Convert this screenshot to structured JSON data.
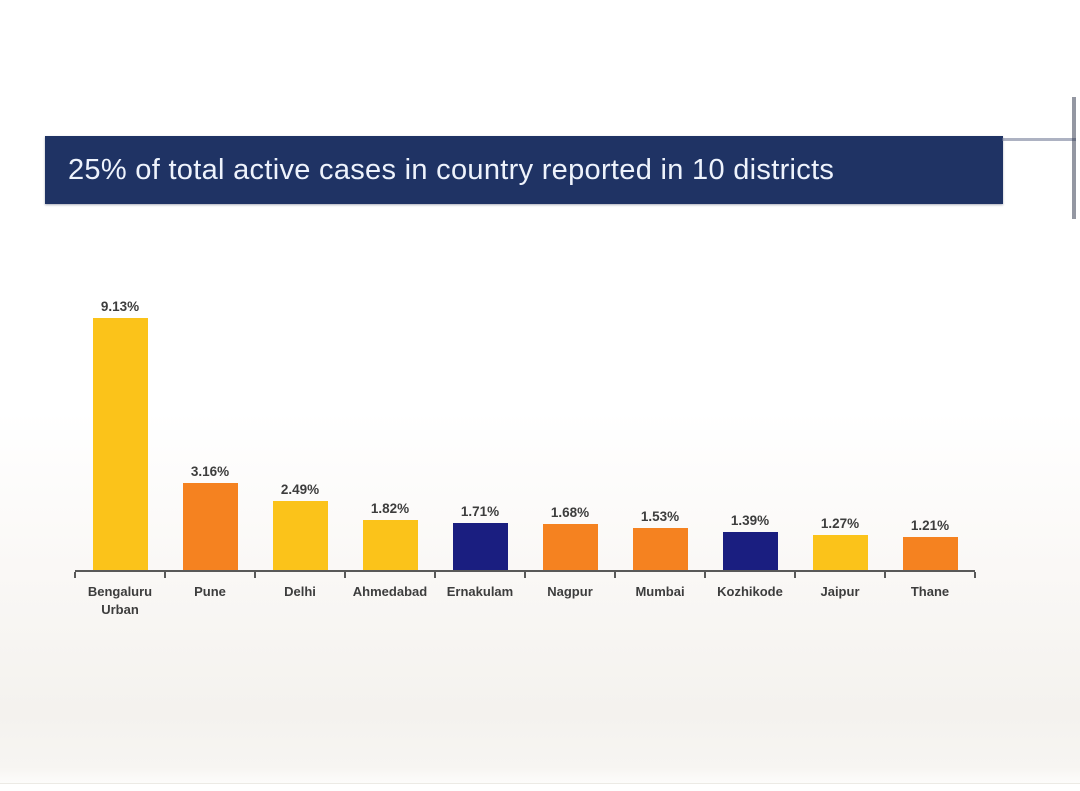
{
  "banner": {
    "title": "25% of total active cases in country reported in 10 districts",
    "background_color": "#1F3364",
    "text_color": "#EEF3FC"
  },
  "chart_data": {
    "type": "bar",
    "title": "25% of total active cases in country reported in 10 districts",
    "categories": [
      "Bengaluru Urban",
      "Pune",
      "Delhi",
      "Ahmedabad",
      "Ernakulam",
      "Nagpur",
      "Mumbai",
      "Kozhikode",
      "Jaipur",
      "Thane"
    ],
    "values": [
      9.13,
      3.16,
      2.49,
      1.82,
      1.71,
      1.68,
      1.53,
      1.39,
      1.27,
      1.21
    ],
    "value_labels": [
      "9.13%",
      "3.16%",
      "2.49%",
      "1.82%",
      "1.71%",
      "1.68%",
      "1.53%",
      "1.39%",
      "1.27%",
      "1.21%"
    ],
    "unit": "%",
    "bar_colors": [
      "#FBC31A",
      "#F58220",
      "#FBC31A",
      "#FBC31A",
      "#1A1E80",
      "#F58220",
      "#F58220",
      "#1A1E80",
      "#FBC31A",
      "#F58220"
    ],
    "palette": {
      "gold": "#FBC31A",
      "orange": "#F58220",
      "navy": "#1A1E80"
    },
    "xlabel": "",
    "ylabel": "",
    "ylim": [
      0,
      10.5
    ],
    "grid": false,
    "legend": false,
    "data_labels": true,
    "axis_color": "#595959",
    "label_color": "#3D3D3D"
  }
}
